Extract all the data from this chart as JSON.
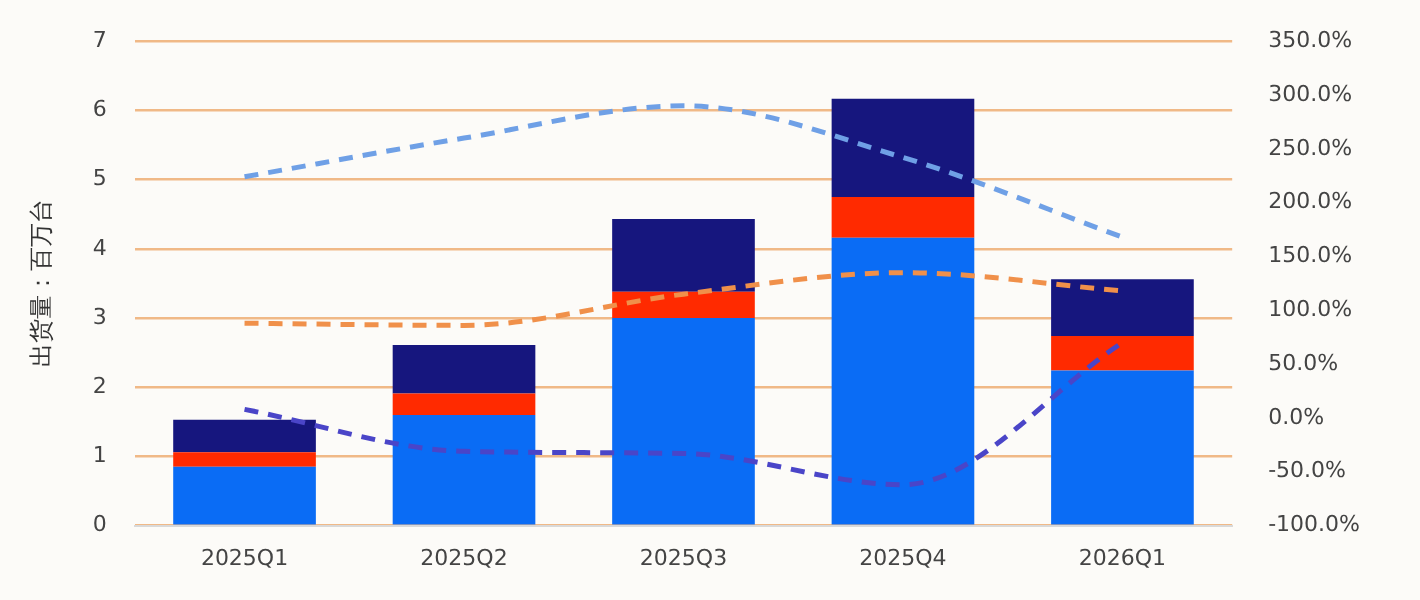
{
  "chart_data": {
    "type": "bar",
    "stacked": true,
    "ylabel": "出货量：百万台",
    "categories": [
      "2025Q1",
      "2025Q2",
      "2025Q3",
      "2025Q4",
      "2026Q1"
    ],
    "series": [
      {
        "color": "#0a6cf5",
        "values": [
          0.85,
          1.6,
          3.0,
          4.16,
          2.24
        ]
      },
      {
        "color": "#ff2a00",
        "values": [
          0.21,
          0.31,
          0.38,
          0.59,
          0.5
        ]
      },
      {
        "color": "#16167e",
        "values": [
          0.47,
          0.7,
          1.05,
          1.42,
          0.82
        ]
      },
      {
        "type": "line",
        "axis": "y2",
        "line_style": "dashed",
        "marker": "none",
        "color": "#6fa0e6",
        "values": [
          224,
          260,
          290,
          242,
          168
        ]
      },
      {
        "type": "line",
        "axis": "y2",
        "line_style": "dashed",
        "marker": "none",
        "color": "#f0904a",
        "values": [
          88,
          86,
          115,
          135,
          118
        ]
      },
      {
        "type": "line",
        "axis": "y2",
        "line_style": "dashed",
        "marker": "none",
        "color": "#4a45c8",
        "values": [
          8,
          -31,
          -33,
          -62,
          70
        ]
      }
    ],
    "ylim": [
      0,
      7
    ],
    "yticks": [
      0,
      1,
      2,
      3,
      4,
      5,
      6,
      7
    ],
    "y2lim": [
      -100,
      350
    ],
    "y2ticks": [
      {
        "value": -100,
        "label": "-100.0%"
      },
      {
        "value": -50,
        "label": "-50.0%"
      },
      {
        "value": 0,
        "label": "0.0%"
      },
      {
        "value": 50,
        "label": "50.0%"
      },
      {
        "value": 100,
        "label": "100.0%"
      },
      {
        "value": 150,
        "label": "150.0%"
      },
      {
        "value": 200,
        "label": "200.0%"
      },
      {
        "value": 250,
        "label": "250.0%"
      },
      {
        "value": 300,
        "label": "300.0%"
      },
      {
        "value": 350,
        "label": "350.0%"
      }
    ],
    "grid": "y",
    "legend": false
  }
}
